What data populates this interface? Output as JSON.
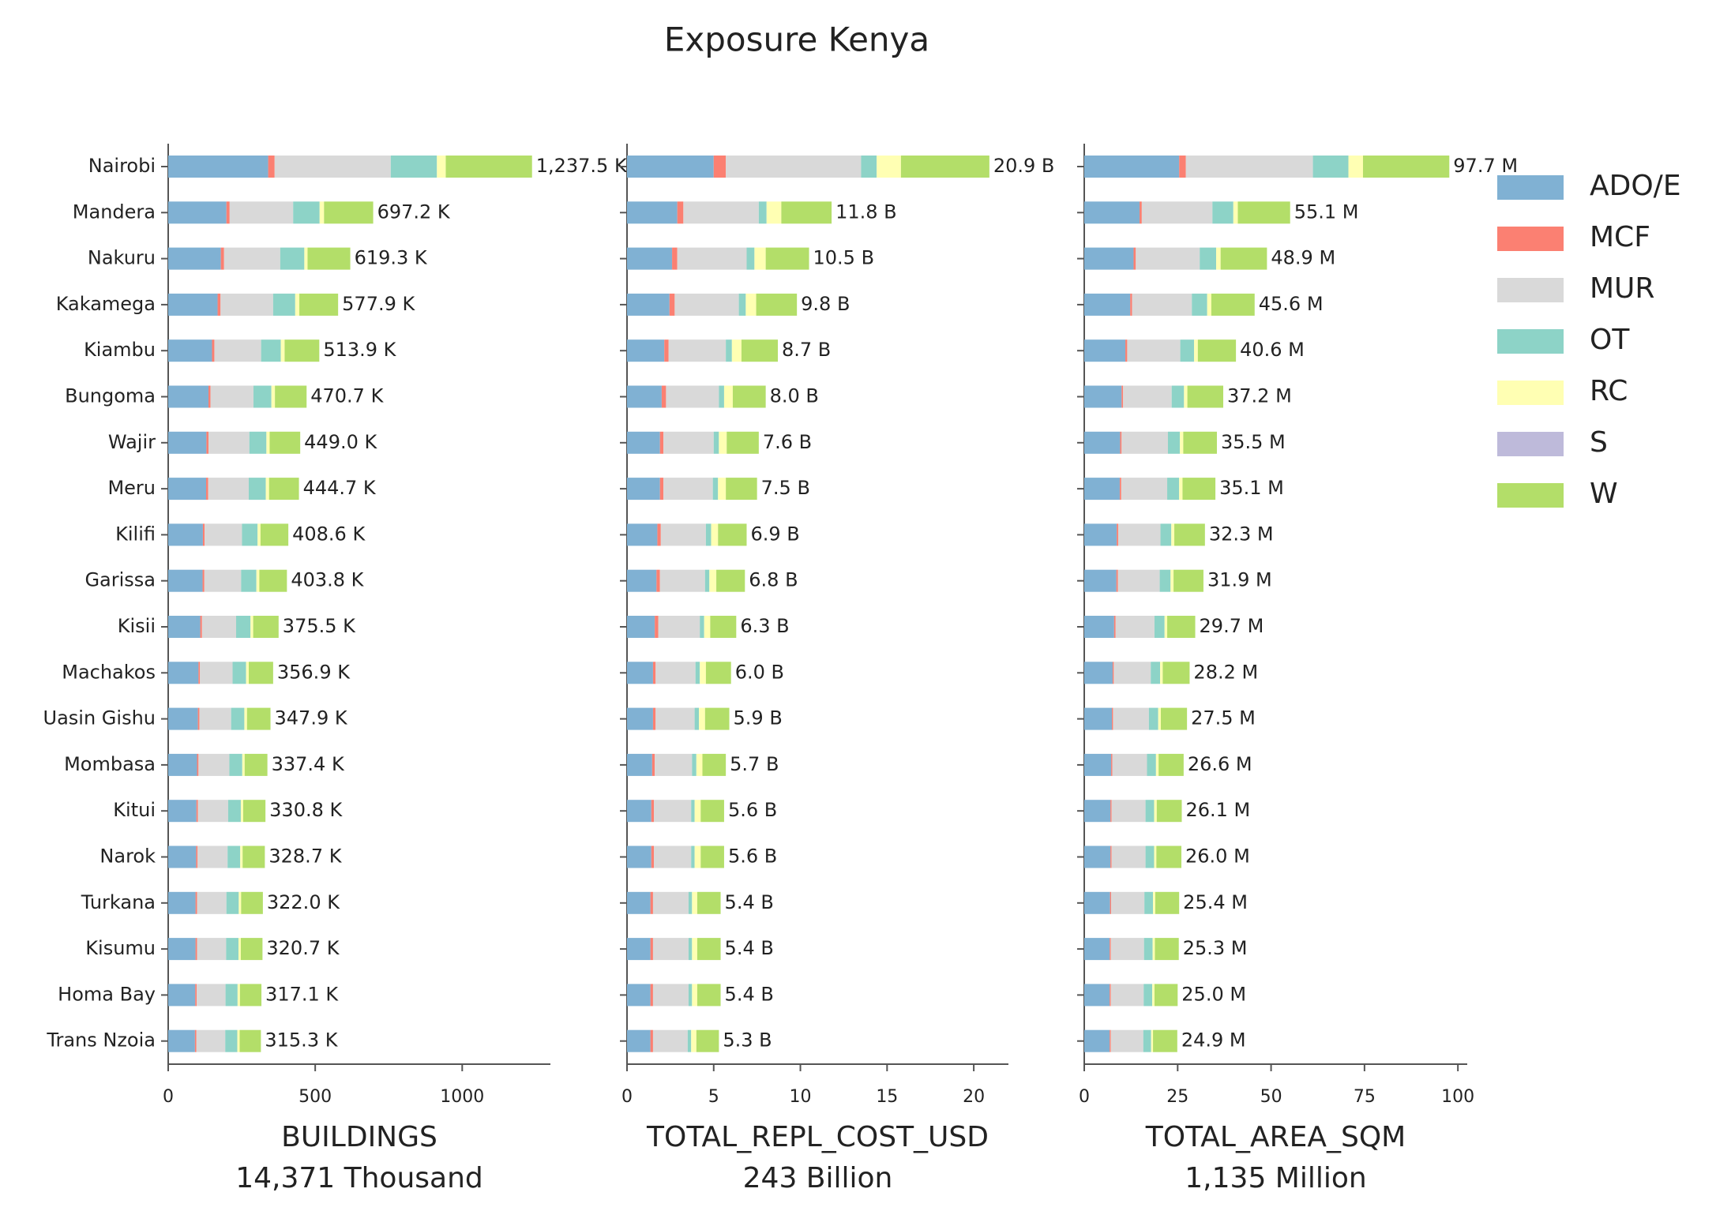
{
  "title": "Exposure Kenya",
  "chart_data": [
    {
      "type": "barh",
      "x_label": "BUILDINGS",
      "x_sublabel": "14,371 Thousand",
      "categories": [
        "Nairobi",
        "Mandera",
        "Nakuru",
        "Kakamega",
        "Kiambu",
        "Bungoma",
        "Wajir",
        "Meru",
        "Kilifi",
        "Garissa",
        "Kisii",
        "Machakos",
        "Uasin Gishu",
        "Mombasa",
        "Kitui",
        "Narok",
        "Turkana",
        "Kisumu",
        "Homa Bay",
        "Trans Nzoia"
      ],
      "xlim": [
        0,
        1300
      ],
      "xticks": [
        0,
        500,
        1000
      ],
      "series": [
        {
          "name": "ADO/E",
          "color": "#80b1d3",
          "values": [
            340,
            198,
            179,
            168,
            149,
            137,
            130,
            129,
            118,
            117,
            109,
            103,
            101,
            98,
            96,
            95,
            93,
            93,
            92,
            91
          ]
        },
        {
          "name": "MCF",
          "color": "#fb8072",
          "values": [
            22,
            11,
            11,
            10,
            8,
            7,
            7,
            7,
            6,
            6,
            6,
            5,
            5,
            5,
            5,
            5,
            5,
            5,
            5,
            5
          ]
        },
        {
          "name": "MUR",
          "color": "#d9d9d9",
          "values": [
            395,
            216,
            191,
            179,
            159,
            146,
            139,
            138,
            127,
            125,
            116,
            111,
            108,
            105,
            103,
            102,
            100,
            99,
            98,
            98
          ]
        },
        {
          "name": "OT",
          "color": "#8dd3c7",
          "values": [
            157,
            90,
            82,
            75,
            67,
            61,
            58,
            58,
            53,
            52,
            49,
            46,
            45,
            44,
            43,
            43,
            42,
            42,
            41,
            41
          ]
        },
        {
          "name": "RC",
          "color": "#ffffb3",
          "values": [
            30,
            15,
            11,
            14,
            13,
            12,
            11,
            11,
            10,
            10,
            9,
            9,
            9,
            8,
            8,
            8,
            8,
            8,
            8,
            8
          ]
        },
        {
          "name": "S",
          "color": "#bebada",
          "values": [
            0,
            0,
            0,
            0,
            0,
            0,
            0,
            0,
            0,
            0,
            0,
            0,
            0,
            0,
            0,
            0,
            0,
            0,
            0,
            0
          ]
        },
        {
          "name": "W",
          "color": "#b3de69",
          "values": [
            293.5,
            167.2,
            145.3,
            131.9,
            117.9,
            107.7,
            104.0,
            101.7,
            94.6,
            93.8,
            86.5,
            82.9,
            79.9,
            77.4,
            75.8,
            75.7,
            74.0,
            73.7,
            73.1,
            72.3
          ]
        }
      ],
      "totals": [
        1237.5,
        697.2,
        619.3,
        577.9,
        513.9,
        470.7,
        449.0,
        444.7,
        408.6,
        403.8,
        375.5,
        356.9,
        347.9,
        337.4,
        330.8,
        328.7,
        322.0,
        320.7,
        317.1,
        315.3
      ],
      "total_labels": [
        "1,237.5 K",
        "697.2 K",
        "619.3 K",
        "577.9 K",
        "513.9 K",
        "470.7 K",
        "449.0 K",
        "444.7 K",
        "408.6 K",
        "403.8 K",
        "375.5 K",
        "356.9 K",
        "347.9 K",
        "337.4 K",
        "330.8 K",
        "328.7 K",
        "322.0 K",
        "320.7 K",
        "317.1 K",
        "315.3 K"
      ]
    },
    {
      "type": "barh",
      "x_label": "TOTAL_REPL_COST_USD",
      "x_sublabel": "243 Billion",
      "xlim": [
        0,
        22
      ],
      "xticks": [
        0,
        5,
        10,
        15,
        20
      ],
      "series": [
        {
          "color": "#80b1d3",
          "values": [
            5.0,
            2.9,
            2.6,
            2.45,
            2.15,
            2.0,
            1.9,
            1.9,
            1.75,
            1.7,
            1.6,
            1.5,
            1.5,
            1.45,
            1.4,
            1.4,
            1.35,
            1.35,
            1.35,
            1.35
          ]
        },
        {
          "color": "#fb8072",
          "values": [
            0.7,
            0.35,
            0.3,
            0.3,
            0.25,
            0.25,
            0.2,
            0.2,
            0.2,
            0.2,
            0.2,
            0.15,
            0.15,
            0.15,
            0.15,
            0.15,
            0.15,
            0.15,
            0.15,
            0.15
          ]
        },
        {
          "color": "#d9d9d9",
          "values": [
            7.8,
            4.35,
            4.0,
            3.7,
            3.3,
            3.05,
            2.9,
            2.85,
            2.6,
            2.6,
            2.4,
            2.3,
            2.25,
            2.15,
            2.15,
            2.15,
            2.05,
            2.05,
            2.05,
            2.0
          ]
        },
        {
          "color": "#8dd3c7",
          "values": [
            0.9,
            0.45,
            0.45,
            0.4,
            0.35,
            0.3,
            0.3,
            0.3,
            0.3,
            0.25,
            0.25,
            0.25,
            0.25,
            0.25,
            0.2,
            0.2,
            0.2,
            0.2,
            0.2,
            0.2
          ]
        },
        {
          "color": "#ffffb3",
          "values": [
            1.4,
            0.85,
            0.65,
            0.6,
            0.55,
            0.5,
            0.45,
            0.45,
            0.4,
            0.4,
            0.35,
            0.35,
            0.35,
            0.35,
            0.35,
            0.35,
            0.3,
            0.3,
            0.3,
            0.3
          ]
        },
        {
          "color": "#bebada",
          "values": [
            0,
            0,
            0,
            0,
            0,
            0,
            0,
            0,
            0,
            0,
            0,
            0,
            0,
            0,
            0,
            0,
            0,
            0,
            0,
            0
          ]
        },
        {
          "color": "#b3de69",
          "values": [
            5.1,
            2.9,
            2.5,
            2.35,
            2.1,
            1.9,
            1.85,
            1.8,
            1.65,
            1.65,
            1.5,
            1.45,
            1.4,
            1.35,
            1.35,
            1.35,
            1.35,
            1.35,
            1.35,
            1.3
          ]
        }
      ],
      "totals": [
        20.9,
        11.8,
        10.5,
        9.8,
        8.7,
        8.0,
        7.6,
        7.5,
        6.9,
        6.8,
        6.3,
        6.0,
        5.9,
        5.7,
        5.6,
        5.6,
        5.4,
        5.4,
        5.4,
        5.3
      ],
      "total_labels": [
        "20.9 B",
        "11.8 B",
        "10.5 B",
        "9.8 B",
        "8.7 B",
        "8.0 B",
        "7.6 B",
        "7.5 B",
        "6.9 B",
        "6.8 B",
        "6.3 B",
        "6.0 B",
        "5.9 B",
        "5.7 B",
        "5.6 B",
        "5.6 B",
        "5.4 B",
        "5.4 B",
        "5.4 B",
        "5.3 B"
      ]
    },
    {
      "type": "barh",
      "x_label": "TOTAL_AREA_SQM",
      "x_sublabel": "1,135 Million",
      "xlim": [
        0,
        102.5
      ],
      "xticks": [
        0,
        25,
        50,
        75,
        100
      ],
      "series": [
        {
          "color": "#80b1d3",
          "values": [
            25.4,
            14.8,
            13.2,
            12.3,
            11.0,
            10.0,
            9.6,
            9.5,
            8.7,
            8.6,
            8.0,
            7.6,
            7.4,
            7.2,
            7.0,
            7.0,
            6.9,
            6.8,
            6.8,
            6.8
          ]
        },
        {
          "color": "#fb8072",
          "values": [
            1.8,
            0.6,
            0.6,
            0.5,
            0.5,
            0.4,
            0.4,
            0.4,
            0.4,
            0.4,
            0.4,
            0.3,
            0.3,
            0.3,
            0.3,
            0.3,
            0.3,
            0.3,
            0.3,
            0.3
          ]
        },
        {
          "color": "#d9d9d9",
          "values": [
            34,
            18.9,
            17.1,
            16.0,
            14.2,
            13.0,
            12.4,
            12.3,
            11.3,
            11.2,
            10.4,
            9.9,
            9.6,
            9.3,
            9.1,
            9.1,
            8.9,
            8.9,
            8.8,
            8.7
          ]
        },
        {
          "color": "#8dd3c7",
          "values": [
            9.5,
            5.6,
            4.4,
            4.1,
            3.7,
            3.3,
            3.2,
            3.2,
            2.9,
            2.9,
            2.7,
            2.5,
            2.5,
            2.4,
            2.3,
            2.3,
            2.3,
            2.3,
            2.3,
            2.1
          ]
        },
        {
          "color": "#ffffb3",
          "values": [
            3.9,
            1.2,
            1.2,
            1.1,
            1.0,
            0.9,
            0.9,
            0.9,
            0.8,
            0.8,
            0.7,
            0.7,
            0.7,
            0.7,
            0.7,
            0.6,
            0.6,
            0.6,
            0.6,
            0.5
          ]
        },
        {
          "color": "#bebada",
          "values": [
            0,
            0,
            0,
            0,
            0,
            0,
            0,
            0,
            0,
            0,
            0,
            0,
            0,
            0,
            0,
            0,
            0,
            0,
            0,
            0
          ]
        },
        {
          "color": "#b3de69",
          "values": [
            23.1,
            14.0,
            12.4,
            11.6,
            10.2,
            9.6,
            9.0,
            8.8,
            8.2,
            8.0,
            7.5,
            7.2,
            7.0,
            6.7,
            6.7,
            6.7,
            6.4,
            6.4,
            6.2,
            6.5
          ]
        }
      ],
      "totals": [
        97.7,
        55.1,
        48.9,
        45.6,
        40.6,
        37.2,
        35.5,
        35.1,
        32.3,
        31.9,
        29.7,
        28.2,
        27.5,
        26.6,
        26.1,
        26.0,
        25.4,
        25.3,
        25.0,
        24.9
      ],
      "total_labels": [
        "97.7 M",
        "55.1 M",
        "48.9 M",
        "45.6 M",
        "40.6 M",
        "37.2 M",
        "35.5 M",
        "35.1 M",
        "32.3 M",
        "31.9 M",
        "29.7 M",
        "28.2 M",
        "27.5 M",
        "26.6 M",
        "26.1 M",
        "26.0 M",
        "25.4 M",
        "25.3 M",
        "25.0 M",
        "24.9 M"
      ]
    }
  ]
}
